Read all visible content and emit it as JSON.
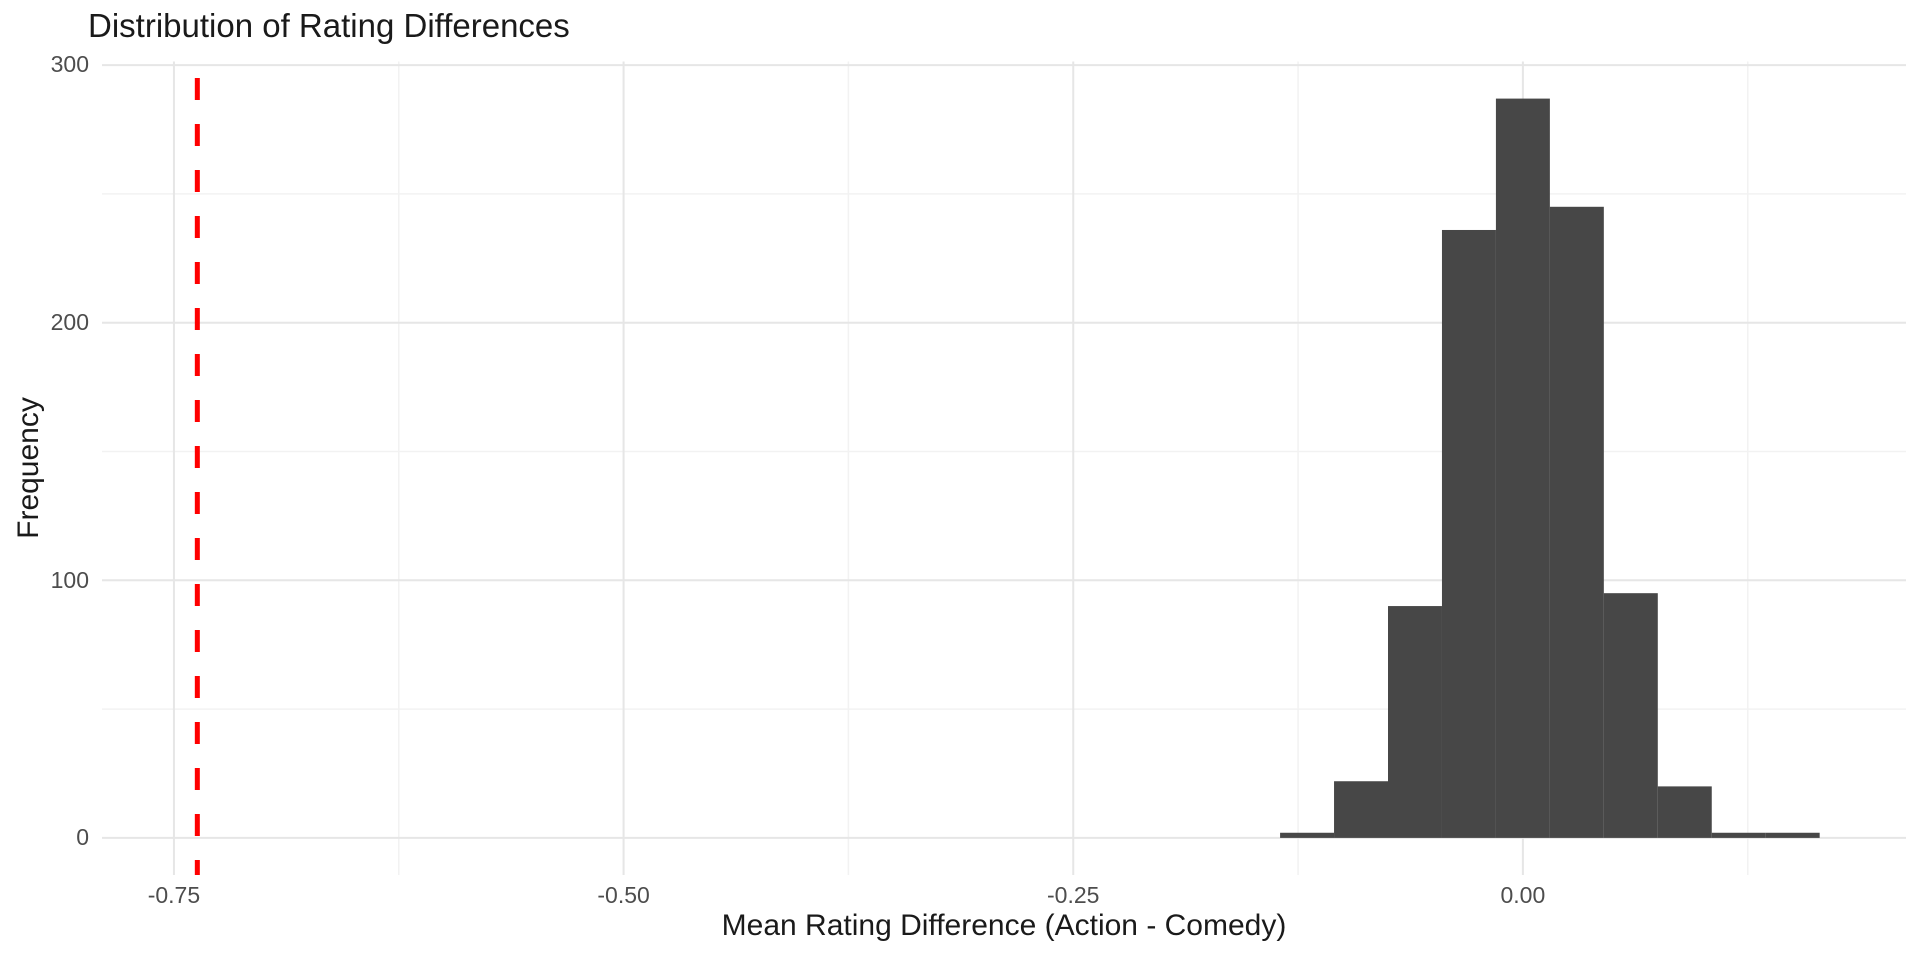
{
  "page": {
    "background": "#ffffff"
  },
  "chart_data": {
    "type": "histogram",
    "title": "Distribution of Rating Differences",
    "xlabel": "Mean Rating Difference (Action - Comedy)",
    "ylabel": "Frequency",
    "bins": {
      "start": -0.135,
      "width": 0.03,
      "counts": [
        2,
        22,
        90,
        236,
        287,
        245,
        95,
        20,
        2,
        2
      ]
    },
    "reference_line": {
      "x": -0.737,
      "color": "#ff0000",
      "style": "dashed"
    },
    "x_axis": {
      "tick_labels": [
        "-0.75",
        "-0.50",
        "-0.25",
        "0.00"
      ],
      "tick_values": [
        -0.75,
        -0.5,
        -0.25,
        0
      ],
      "minor_tick_values": [
        -0.625,
        -0.375,
        -0.125,
        0.125
      ],
      "range": [
        -0.79,
        0.213
      ]
    },
    "y_axis": {
      "tick_labels": [
        "0",
        "100",
        "200",
        "300"
      ],
      "tick_values": [
        0,
        100,
        200,
        300
      ],
      "minor_tick_values": [
        50,
        150,
        250
      ],
      "range": [
        -14.4,
        301.4
      ]
    },
    "legend": "none",
    "grid": true,
    "style": {
      "bar_color": "#474747",
      "grid_major_color": "#e6e6e6",
      "grid_minor_color": "#f2f2f2",
      "tick_label_color": "#4d4d4d",
      "title_color": "#1a1a1a",
      "axis_title_color": "#1a1a1a",
      "background": "#ffffff"
    }
  }
}
